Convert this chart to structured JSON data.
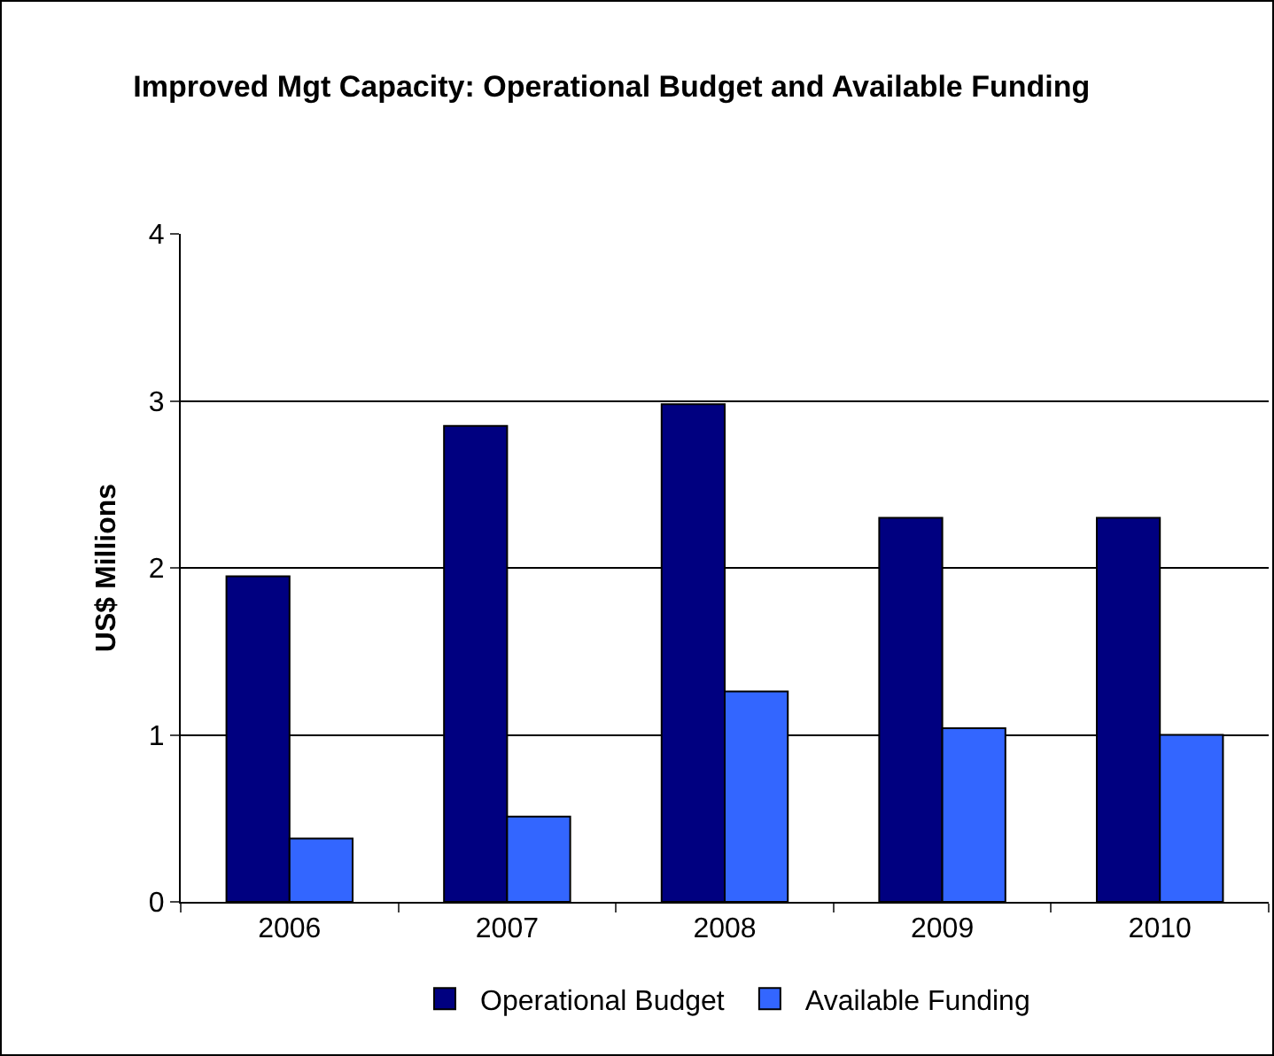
{
  "chart_data": {
    "type": "bar",
    "title": "Improved Mgt Capacity: Operational Budget and Available Funding",
    "ylabel": "US$ Millions",
    "categories": [
      "2006",
      "2007",
      "2008",
      "2009",
      "2010"
    ],
    "series": [
      {
        "name": "Operational Budget",
        "color": "#000080",
        "values": [
          1.95,
          2.85,
          2.98,
          2.3,
          2.3
        ]
      },
      {
        "name": "Available Funding",
        "color": "#3366ff",
        "values": [
          0.38,
          0.51,
          1.26,
          1.04,
          1.0
        ]
      }
    ],
    "ylim": [
      0,
      4
    ],
    "yticks": [
      0,
      1,
      2,
      3,
      4
    ],
    "grid": "y",
    "legend": "bottom"
  }
}
